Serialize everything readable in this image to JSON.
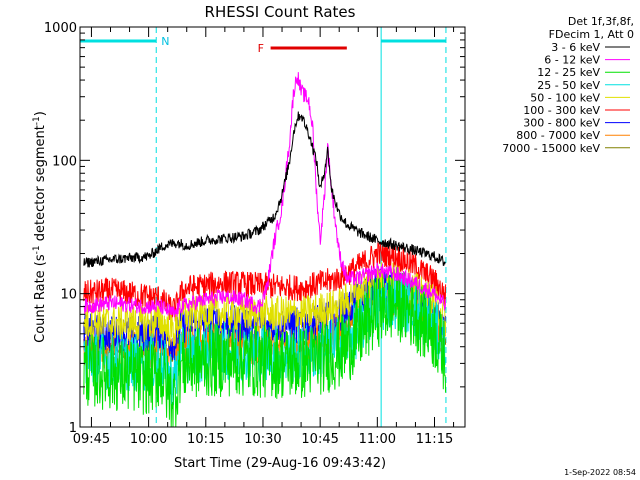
{
  "chart_data": {
    "type": "line",
    "title": "RHESSI Count Rates",
    "xlabel": "Start Time (29-Aug-16 09:43:42)",
    "ylabel": "Count Rate (s⁻¹ detector segment⁻¹)",
    "y_scale": "log",
    "ylim": [
      1,
      1000
    ],
    "xlim": [
      "09:42",
      "11:23"
    ],
    "x_ticks": [
      "09:45",
      "10:00",
      "10:15",
      "10:30",
      "10:45",
      "11:00",
      "11:15"
    ],
    "y_ticks": [
      "1",
      "10",
      "100",
      "1000"
    ],
    "legend_placement": "outside-right",
    "legend_header": [
      "Det 1f,3f,8f,",
      "FDecim 1, Att 0"
    ],
    "timestamp": "1-Sep-2022 08:54",
    "night_intervals": [
      {
        "start": "09:42",
        "end": "10:02",
        "label": "N"
      },
      {
        "start": "11:01",
        "end": "11:18",
        "label": ""
      }
    ],
    "flare_interval": {
      "start": "10:32",
      "end": "10:52",
      "label": "F"
    },
    "series": [
      {
        "name": "3 - 6 keV",
        "color": "#000000",
        "x": [
          "09:43",
          "09:50",
          "10:00",
          "10:03",
          "10:04",
          "10:07",
          "10:08",
          "10:10",
          "10:15",
          "10:20",
          "10:25",
          "10:29",
          "10:33",
          "10:35",
          "10:37",
          "10:38",
          "10:39",
          "10:40",
          "10:42",
          "10:44",
          "10:45",
          "10:46",
          "10:47",
          "10:48",
          "10:50",
          "10:52",
          "10:55",
          "11:00",
          "11:05",
          "11:10",
          "11:15",
          "11:18"
        ],
        "values": [
          17,
          18,
          19,
          22,
          23,
          24,
          24,
          23,
          25,
          26,
          27,
          30,
          38,
          55,
          100,
          160,
          210,
          220,
          160,
          100,
          60,
          80,
          120,
          60,
          40,
          33,
          29,
          25,
          23,
          21,
          19,
          17
        ]
      },
      {
        "name": "6 - 12 keV",
        "color": "#ff00ff",
        "x": [
          "09:43",
          "09:50",
          "10:00",
          "10:03",
          "10:07",
          "10:08",
          "10:15",
          "10:20",
          "10:25",
          "10:29",
          "10:31",
          "10:33",
          "10:35",
          "10:37",
          "10:38",
          "10:39",
          "10:40",
          "10:42",
          "10:43",
          "10:44",
          "10:45",
          "10:46",
          "10:47",
          "10:48",
          "10:50",
          "10:52",
          "10:55",
          "11:00",
          "11:05",
          "11:10",
          "11:15",
          "11:18"
        ],
        "values": [
          8,
          8.5,
          8,
          8,
          7,
          8,
          9,
          9.5,
          9,
          8,
          11,
          25,
          45,
          140,
          320,
          440,
          330,
          280,
          180,
          60,
          25,
          50,
          130,
          60,
          20,
          13,
          13,
          15,
          14,
          12,
          10,
          8
        ]
      },
      {
        "name": "12 - 25 keV",
        "color": "#00e000",
        "x": [
          "09:43",
          "09:50",
          "10:00",
          "10:03",
          "10:05",
          "10:07",
          "10:08",
          "10:10",
          "10:20",
          "10:30",
          "10:40",
          "10:50",
          "10:55",
          "11:00",
          "11:05",
          "11:10",
          "11:15",
          "11:18"
        ],
        "values": [
          2.7,
          2.5,
          2.3,
          2.6,
          1.9,
          1.6,
          2.8,
          3.0,
          3.2,
          3.1,
          3.0,
          3.6,
          4.8,
          7.5,
          8.5,
          7,
          5,
          3.2
        ]
      },
      {
        "name": "25 - 50 keV",
        "color": "#00e0e0",
        "x": [
          "09:43",
          "09:50",
          "10:00",
          "10:03",
          "10:05",
          "10:07",
          "10:08",
          "10:10",
          "10:20",
          "10:30",
          "10:40",
          "10:50",
          "10:55",
          "11:00",
          "11:05",
          "11:10",
          "11:15",
          "11:18"
        ],
        "values": [
          3.3,
          3.1,
          3.0,
          3.1,
          2.5,
          2.2,
          3.3,
          3.5,
          3.7,
          3.6,
          3.5,
          4.1,
          5.5,
          8.2,
          9,
          7.5,
          5.5,
          3.8
        ]
      },
      {
        "name": "50 - 100 keV",
        "color": "#e0e000",
        "x": [
          "09:43",
          "09:50",
          "10:00",
          "10:03",
          "10:05",
          "10:07",
          "10:08",
          "10:10",
          "10:20",
          "10:30",
          "10:40",
          "10:50",
          "10:55",
          "11:00",
          "11:05",
          "11:10",
          "11:15",
          "11:18"
        ],
        "values": [
          6.2,
          6.0,
          6.0,
          6.3,
          5.5,
          5.2,
          6.5,
          7.0,
          7.2,
          7.0,
          7.0,
          8.0,
          10.5,
          13,
          12.5,
          10.5,
          8.5,
          6.5
        ]
      },
      {
        "name": "100 - 300 keV",
        "color": "#ff0000",
        "x": [
          "09:43",
          "09:50",
          "10:00",
          "10:03",
          "10:05",
          "10:07",
          "10:08",
          "10:10",
          "10:20",
          "10:30",
          "10:40",
          "10:50",
          "10:55",
          "11:00",
          "11:05",
          "11:10",
          "11:15",
          "11:18"
        ],
        "values": [
          10,
          10.5,
          9.5,
          9.3,
          8.0,
          7.5,
          9.5,
          11,
          12,
          11.5,
          11,
          13,
          16,
          20,
          19,
          16,
          12.5,
          9.5
        ]
      },
      {
        "name": "300 - 800 keV",
        "color": "#0000ff",
        "x": [
          "09:43",
          "09:50",
          "10:00",
          "10:03",
          "10:05",
          "10:07",
          "10:08",
          "10:10",
          "10:20",
          "10:30",
          "10:40",
          "10:50",
          "10:55",
          "11:00",
          "11:05",
          "11:10",
          "11:15",
          "11:18"
        ],
        "values": [
          5.2,
          5.0,
          5.0,
          5.3,
          4.5,
          4.3,
          5.5,
          6.0,
          6.0,
          5.8,
          5.8,
          6.8,
          9,
          12,
          11,
          9,
          7,
          5.2
        ]
      },
      {
        "name": "800 - 7000 keV",
        "color": "#ff8000",
        "x": [
          "09:43",
          "09:50",
          "10:00",
          "10:03",
          "10:05",
          "10:07",
          "10:08",
          "10:10",
          "10:20",
          "10:30",
          "10:40",
          "10:50",
          "10:55",
          "11:00",
          "11:05",
          "11:10",
          "11:15",
          "11:18"
        ],
        "values": [
          4.0,
          3.8,
          3.8,
          4.0,
          3.6,
          3.5,
          4.0,
          4.2,
          4.3,
          4.2,
          4.2,
          5.0,
          7,
          10.5,
          10,
          8,
          6,
          4.2
        ]
      },
      {
        "name": "7000 - 15000 keV",
        "color": "#808000",
        "x": [
          "09:43",
          "09:50",
          "10:00",
          "10:03",
          "10:05",
          "10:07",
          "10:08",
          "10:10",
          "10:20",
          "10:30",
          "10:40",
          "10:50",
          "10:55",
          "11:00",
          "11:05",
          "11:10",
          "11:15",
          "11:18"
        ],
        "values": [
          3.9,
          3.7,
          3.7,
          3.9,
          3.5,
          3.4,
          3.9,
          4.1,
          4.2,
          4.1,
          4.1,
          4.9,
          6.8,
          10,
          9.6,
          7.8,
          5.8,
          4.1
        ]
      }
    ]
  }
}
